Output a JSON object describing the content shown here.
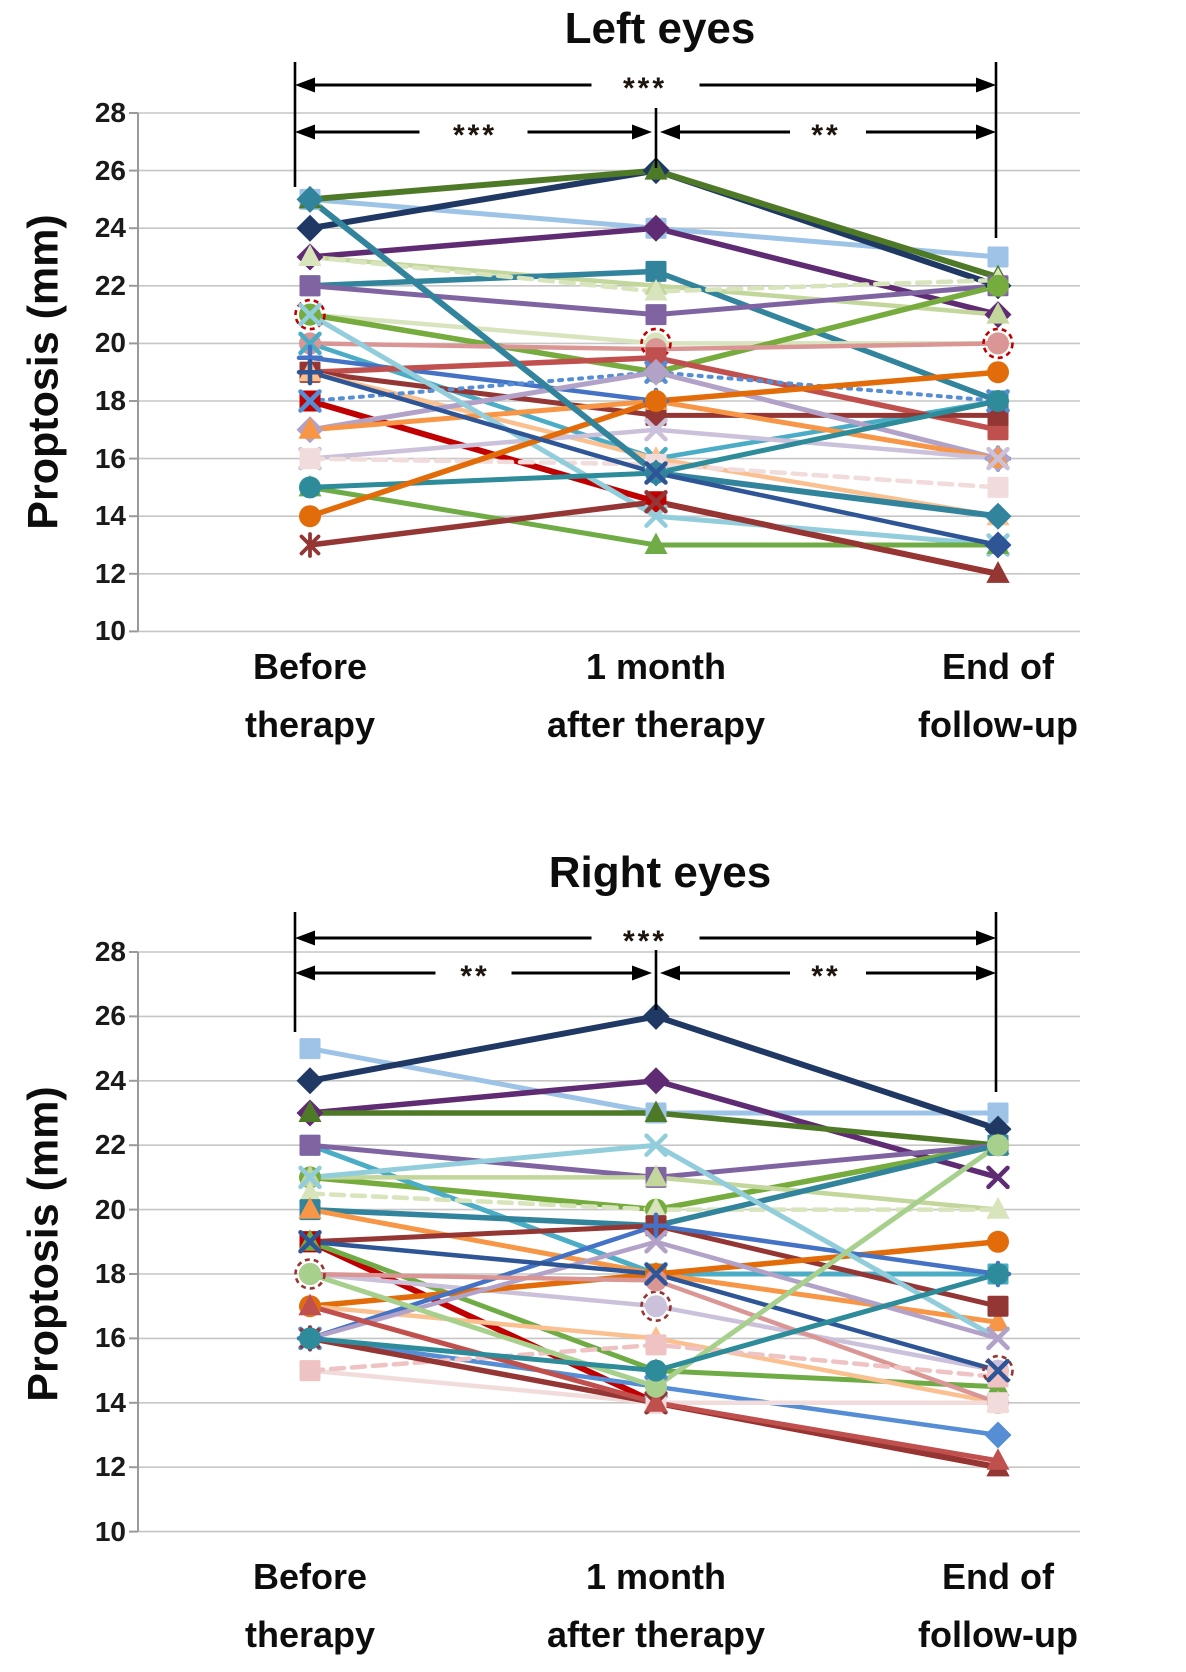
{
  "chart_data": [
    {
      "type": "line",
      "title": "Left eyes",
      "ylabel": "Proptosis (mm)",
      "xlabel": "",
      "ylim": [
        10,
        28
      ],
      "yticks": [
        28,
        26,
        24,
        22,
        20,
        18,
        16,
        14,
        12,
        10
      ],
      "grid": true,
      "legend": "none",
      "categories": [
        {
          "line1": "Before",
          "line2": "therapy"
        },
        {
          "line1": "1 month",
          "line2": "after therapy"
        },
        {
          "line1": "End of",
          "line2": "follow-up"
        }
      ],
      "significance": [
        {
          "from": 0,
          "to": 2,
          "label": "***",
          "row": 0
        },
        {
          "from": 0,
          "to": 1,
          "label": "***",
          "row": 1
        },
        {
          "from": 1,
          "to": 2,
          "label": "**",
          "row": 1
        }
      ],
      "series": [
        {
          "color": "#9DC3E6",
          "marker": "square",
          "values": [
            25,
            24,
            23
          ],
          "width": 5
        },
        {
          "color": "#1F3864",
          "marker": "diamond",
          "values": [
            24,
            26,
            22
          ],
          "width": 6
        },
        {
          "color": "#4E7A27",
          "marker": "triangle",
          "values": [
            25,
            26,
            22.3
          ],
          "width": 6
        },
        {
          "color": "#5F2B72",
          "marker": "diamond",
          "values": [
            23,
            24,
            21
          ],
          "width": 5.5
        },
        {
          "color": "#C3D69B",
          "marker": "triangle",
          "values": [
            23,
            22,
            21
          ],
          "width": 4.5
        },
        {
          "color": "#31849B",
          "marker": "square",
          "values": [
            22,
            22.5,
            18
          ],
          "width": 5.5
        },
        {
          "color": "#8064A2",
          "marker": "square",
          "values": [
            22,
            21,
            22
          ],
          "width": 5
        },
        {
          "color": "#D8E4BC",
          "marker": "triangle",
          "values": [
            23,
            21.8,
            22.2
          ],
          "width": 4.5,
          "dash": "13 8"
        },
        {
          "color": "#D7E4BD",
          "marker": "circle",
          "values": [
            21,
            20,
            20
          ],
          "width": 4.5,
          "ring": "#C00000"
        },
        {
          "color": "#76AB3D",
          "marker": "circle",
          "values": [
            21,
            19,
            22
          ],
          "width": 5.5
        },
        {
          "color": "#D99694",
          "marker": "circle",
          "values": [
            20,
            19.8,
            20
          ],
          "width": 4.5
        },
        {
          "color": "#4BACC6",
          "marker": "x",
          "values": [
            20,
            16,
            18
          ],
          "width": 4.5
        },
        {
          "color": "#4472C4",
          "marker": "plus",
          "values": [
            19.5,
            18,
            16
          ],
          "width": 4.5
        },
        {
          "color": "#C0504D",
          "marker": "square",
          "values": [
            19,
            19.5,
            17
          ],
          "width": 5.5
        },
        {
          "color": "#943634",
          "marker": "square",
          "values": [
            19,
            17.5,
            17.5
          ],
          "width": 5
        },
        {
          "color": "#FAC090",
          "marker": "triangle",
          "values": [
            19,
            16,
            14
          ],
          "width": 4.5
        },
        {
          "color": "#C00000",
          "marker": "square",
          "values": [
            18,
            14.5,
            12
          ],
          "width": 6,
          "pm": [
            "square",
            "square",
            "triangle"
          ]
        },
        {
          "color": "#558ED5",
          "marker": "x",
          "values": [
            18,
            19,
            18
          ],
          "width": 4,
          "dash": "3 7"
        },
        {
          "color": "#B3A2C7",
          "marker": "diamond",
          "values": [
            17,
            19,
            16
          ],
          "width": 5
        },
        {
          "color": "#F79646",
          "marker": "triangle",
          "values": [
            17,
            18,
            16
          ],
          "width": 5
        },
        {
          "color": "#CCC1DA",
          "marker": "x",
          "values": [
            16,
            17,
            16
          ],
          "width": 4.5
        },
        {
          "color": "#F2DBDB",
          "marker": "square",
          "values": [
            16,
            15.8,
            15
          ],
          "width": 4.5,
          "dash": "13 8"
        },
        {
          "color": "#92CDDC",
          "marker": "x",
          "values": [
            21,
            14,
            13
          ],
          "width": 5
        },
        {
          "color": "#6FAC46",
          "marker": "triangle",
          "values": [
            15,
            13,
            13
          ],
          "width": 5
        },
        {
          "color": "#2E8B9A",
          "marker": "circle",
          "values": [
            15,
            15.5,
            18
          ],
          "width": 5
        },
        {
          "color": "#E36C0A",
          "marker": "circle",
          "values": [
            14,
            18,
            19
          ],
          "width": 5.5
        },
        {
          "color": "#943634",
          "marker": "asterisk",
          "values": [
            13,
            14.5,
            12
          ],
          "width": 5.5,
          "pm": [
            "asterisk",
            "x",
            "triangle"
          ]
        },
        {
          "color": "#31849B",
          "marker": "diamond",
          "values": [
            25,
            15.5,
            14
          ],
          "width": 6
        },
        {
          "color": "#2E5596",
          "marker": "plus",
          "values": [
            19,
            15.5,
            13
          ],
          "width": 4.5,
          "pm": [
            "plus",
            "x",
            "diamond"
          ]
        }
      ]
    },
    {
      "type": "line",
      "title": "Right eyes",
      "ylabel": "Proptosis (mm)",
      "xlabel": "",
      "ylim": [
        10,
        28
      ],
      "yticks": [
        28,
        26,
        24,
        22,
        20,
        18,
        16,
        14,
        12,
        10
      ],
      "grid": true,
      "legend": "none",
      "categories": [
        {
          "line1": "Before",
          "line2": "therapy"
        },
        {
          "line1": "1 month",
          "line2": "after therapy"
        },
        {
          "line1": "End of",
          "line2": "follow-up"
        }
      ],
      "significance": [
        {
          "from": 0,
          "to": 2,
          "label": "***",
          "row": 0
        },
        {
          "from": 0,
          "to": 1,
          "label": "**",
          "row": 1
        },
        {
          "from": 1,
          "to": 2,
          "label": "**",
          "row": 1
        }
      ],
      "series": [
        {
          "color": "#9DC3E6",
          "marker": "square",
          "values": [
            25,
            23,
            23
          ],
          "width": 5
        },
        {
          "color": "#1F3864",
          "marker": "diamond",
          "values": [
            24,
            26,
            22.5
          ],
          "width": 6
        },
        {
          "color": "#5F2B72",
          "marker": "diamond",
          "values": [
            23,
            24,
            21
          ],
          "width": 5.5,
          "pm": [
            "diamond",
            "diamond",
            "x"
          ]
        },
        {
          "color": "#4E7A27",
          "marker": "triangle",
          "values": [
            23,
            23,
            22
          ],
          "width": 5.5
        },
        {
          "color": "#76AB3D",
          "marker": "circle",
          "values": [
            21,
            20,
            22
          ],
          "width": 5.5
        },
        {
          "color": "#4BACC6",
          "marker": "square",
          "values": [
            22,
            18,
            18
          ],
          "width": 5
        },
        {
          "color": "#8064A2",
          "marker": "square",
          "values": [
            22,
            21,
            22
          ],
          "width": 5
        },
        {
          "color": "#C3D69B",
          "marker": "triangle",
          "values": [
            21,
            21,
            20
          ],
          "width": 4.5
        },
        {
          "color": "#D8E4BC",
          "marker": "triangle",
          "values": [
            20.5,
            20,
            20
          ],
          "width": 4.5,
          "dash": "13 8"
        },
        {
          "color": "#31849B",
          "marker": "square",
          "values": [
            20,
            19.5,
            22
          ],
          "width": 5.5
        },
        {
          "color": "#F79646",
          "marker": "triangle",
          "values": [
            20,
            18,
            16.5
          ],
          "width": 5
        },
        {
          "color": "#943634",
          "marker": "square",
          "values": [
            19,
            19.5,
            17
          ],
          "width": 5
        },
        {
          "color": "#C00000",
          "marker": "square",
          "values": [
            19,
            14,
            12
          ],
          "width": 6,
          "pm": [
            "square",
            "square",
            "triangle"
          ]
        },
        {
          "color": "#6FAC46",
          "marker": "triangle",
          "values": [
            19,
            15,
            14.5
          ],
          "width": 5
        },
        {
          "color": "#CCC1DA",
          "marker": "circle",
          "values": [
            18,
            17,
            15
          ],
          "width": 4.5,
          "ring": "#943634"
        },
        {
          "color": "#E36C0A",
          "marker": "circle",
          "values": [
            17,
            18,
            19
          ],
          "width": 5.5
        },
        {
          "color": "#FAC090",
          "marker": "triangle",
          "values": [
            17,
            16,
            14
          ],
          "width": 4.5
        },
        {
          "color": "#4472C4",
          "marker": "plus",
          "values": [
            16,
            19.5,
            18
          ],
          "width": 4.5
        },
        {
          "color": "#92CDDC",
          "marker": "x",
          "values": [
            21,
            22,
            16
          ],
          "width": 5
        },
        {
          "color": "#B3A2C7",
          "marker": "x",
          "values": [
            16,
            19,
            16
          ],
          "width": 4.5
        },
        {
          "color": "#558ED5",
          "marker": "diamond",
          "values": [
            16,
            14.5,
            13
          ],
          "width": 4.5,
          "pm": [
            "x",
            "x",
            "diamond"
          ]
        },
        {
          "color": "#D99694",
          "marker": "circle",
          "values": [
            18,
            17.8,
            14
          ],
          "width": 4.5
        },
        {
          "color": "#F2DBDB",
          "marker": "square",
          "values": [
            15,
            14,
            14
          ],
          "width": 4.5
        },
        {
          "color": "#EFC3C3",
          "marker": "square",
          "values": [
            15,
            15.8,
            14.8
          ],
          "width": 4.5,
          "dash": "13 8"
        },
        {
          "color": "#2E5596",
          "marker": "x",
          "values": [
            19,
            18,
            15
          ],
          "width": 4.5
        },
        {
          "color": "#943634",
          "marker": "asterisk",
          "values": [
            16,
            14,
            12
          ],
          "width": 5.5,
          "pm": [
            "asterisk",
            "x",
            "triangle"
          ]
        },
        {
          "color": "#C0504D",
          "marker": "triangle",
          "values": [
            17,
            14,
            12.2
          ],
          "width": 5
        },
        {
          "color": "#A8D08D",
          "marker": "circle",
          "values": [
            18,
            14.5,
            22
          ],
          "width": 5
        },
        {
          "color": "#2E8B9A",
          "marker": "circle",
          "values": [
            16,
            15,
            18
          ],
          "width": 5
        }
      ]
    }
  ]
}
